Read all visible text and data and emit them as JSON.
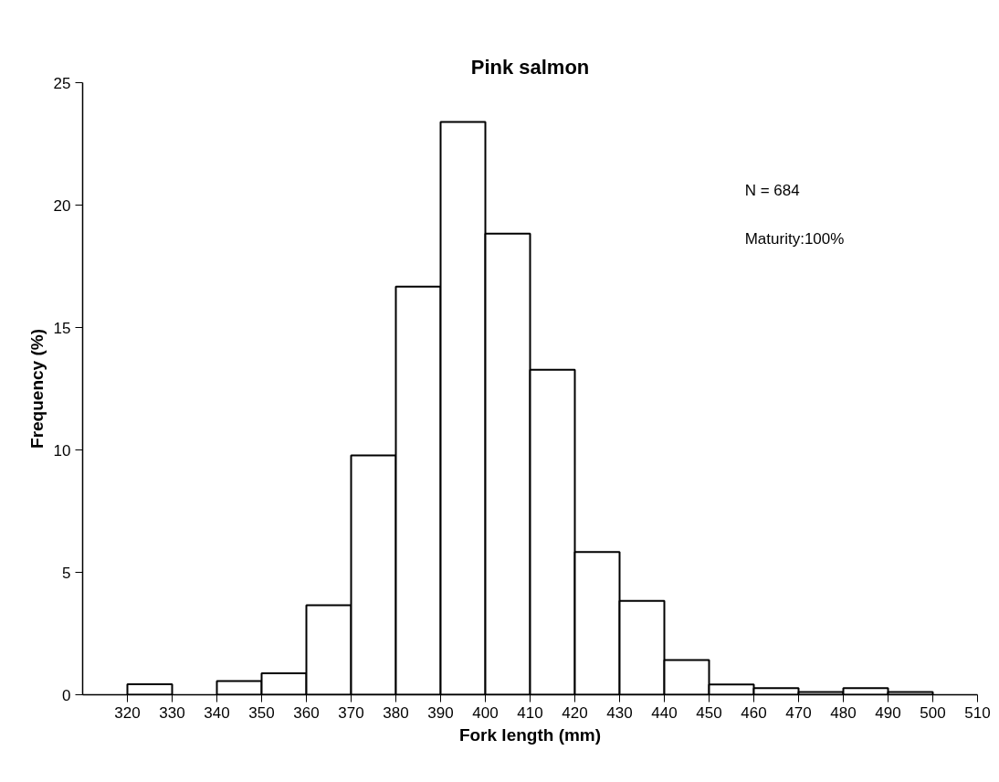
{
  "chart_data": {
    "type": "histogram",
    "title": "Pink salmon",
    "xlabel": "Fork length (mm)",
    "ylabel": "Frequency (%)",
    "bins": [
      320,
      330,
      340,
      350,
      360,
      370,
      380,
      390,
      400,
      410,
      420,
      430,
      440,
      450,
      460,
      470,
      480,
      490,
      500,
      510
    ],
    "values": [
      0.43,
      0,
      0.56,
      0.88,
      3.66,
      9.78,
      16.67,
      23.4,
      18.83,
      13.27,
      5.83,
      3.83,
      1.42,
      0.42,
      0.27,
      0.11,
      0.27,
      0.11,
      0
    ],
    "color": "#ffffff",
    "xlim": [
      310,
      510
    ],
    "xticks": [
      320,
      330,
      340,
      350,
      360,
      370,
      380,
      390,
      400,
      410,
      420,
      430,
      440,
      450,
      460,
      470,
      480,
      490,
      500,
      510
    ],
    "ylim": [
      0,
      25
    ],
    "yticks": [
      0,
      5,
      10,
      15,
      20,
      25
    ],
    "annotations": [
      "N = 684",
      "Maturity:100%"
    ],
    "grid": false
  }
}
